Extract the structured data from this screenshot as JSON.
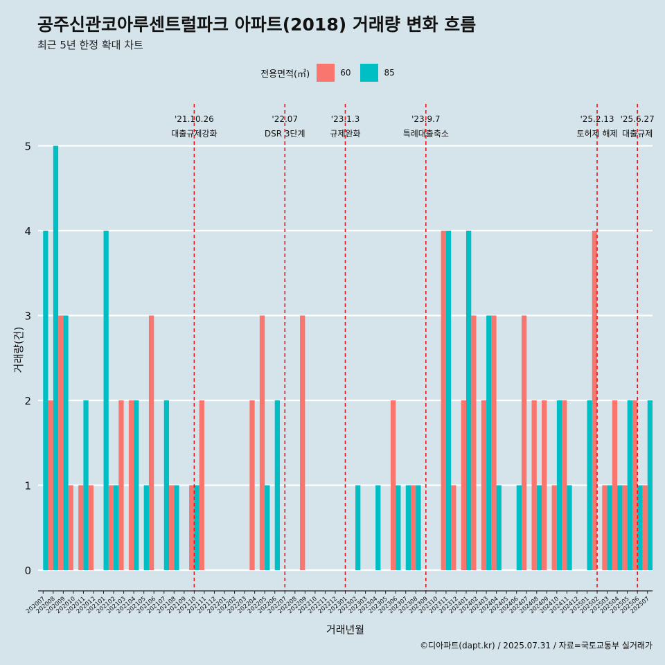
{
  "chart_data": {
    "type": "bar",
    "title": "공주신관코아루센트럴파크 아파트(2018) 거래량 변화 흐름",
    "subtitle": "최근 5년 한정 확대 차트",
    "xlabel": "거래년월",
    "ylabel": "거래량(건)",
    "caption": "©디아파트(dapt.kr) / 2025.07.31 / 자료=국토교통부 실거래가",
    "ylim": [
      -0.25,
      5.5
    ],
    "yticks": [
      0,
      1,
      2,
      3,
      4,
      5
    ],
    "legend": {
      "title": "전용면적(㎡)",
      "position": "top",
      "items": [
        {
          "label": "60",
          "color": "#F8766D"
        },
        {
          "label": "85",
          "color": "#00BFC4"
        }
      ]
    },
    "categories": [
      "202007",
      "202008",
      "202009",
      "202010",
      "202011",
      "202012",
      "202101",
      "202102",
      "202103",
      "202104",
      "202105",
      "202106",
      "202107",
      "202108",
      "202109",
      "202110",
      "202111",
      "202112",
      "202201",
      "202202",
      "202203",
      "202204",
      "202205",
      "202206",
      "202207",
      "202208",
      "202209",
      "202210",
      "202211",
      "202212",
      "202301",
      "202302",
      "202303",
      "202304",
      "202305",
      "202306",
      "202307",
      "202308",
      "202309",
      "202310",
      "202311",
      "202312",
      "202401",
      "202402",
      "202403",
      "202404",
      "202405",
      "202406",
      "202407",
      "202408",
      "202409",
      "202410",
      "202411",
      "202412",
      "202501",
      "202502",
      "202503",
      "202504",
      "202505",
      "202506",
      "202507"
    ],
    "series": [
      {
        "name": "60",
        "color": "#F8766D",
        "values": [
          0,
          2,
          3,
          1,
          1,
          1,
          0,
          1,
          2,
          2,
          0,
          3,
          0,
          1,
          0,
          1,
          2,
          0,
          0,
          0,
          0,
          2,
          3,
          0,
          0,
          0,
          3,
          0,
          0,
          0,
          0,
          0,
          0,
          0,
          0,
          2,
          0,
          1,
          0,
          0,
          4,
          1,
          2,
          3,
          2,
          3,
          0,
          0,
          3,
          2,
          2,
          1,
          2,
          0,
          0,
          4,
          1,
          2,
          1,
          2,
          1
        ]
      },
      {
        "name": "85",
        "color": "#00BFC4",
        "values": [
          4,
          5,
          3,
          0,
          2,
          0,
          4,
          1,
          0,
          2,
          1,
          0,
          2,
          1,
          0,
          1,
          0,
          0,
          0,
          0,
          0,
          0,
          1,
          2,
          0,
          0,
          0,
          0,
          0,
          0,
          0,
          1,
          0,
          1,
          0,
          1,
          1,
          1,
          0,
          0,
          4,
          0,
          4,
          0,
          3,
          1,
          0,
          1,
          0,
          1,
          0,
          2,
          1,
          0,
          2,
          0,
          1,
          1,
          2,
          1,
          2
        ]
      }
    ],
    "events": [
      {
        "month": "202110",
        "date": "'21.10.26",
        "label": "대출규제강화"
      },
      {
        "month": "202207",
        "date": "'22.07",
        "label": "DSR 3단계"
      },
      {
        "month": "202301",
        "date": "'23.1.3",
        "label": "규제완화"
      },
      {
        "month": "202309",
        "date": "'23.9.7",
        "label": "특례대출축소"
      },
      {
        "month": "202502",
        "date": "'25.2.13",
        "label": "토허제 해제"
      },
      {
        "month": "202506",
        "date": "'25.6.27",
        "label": "대출규제"
      }
    ]
  }
}
